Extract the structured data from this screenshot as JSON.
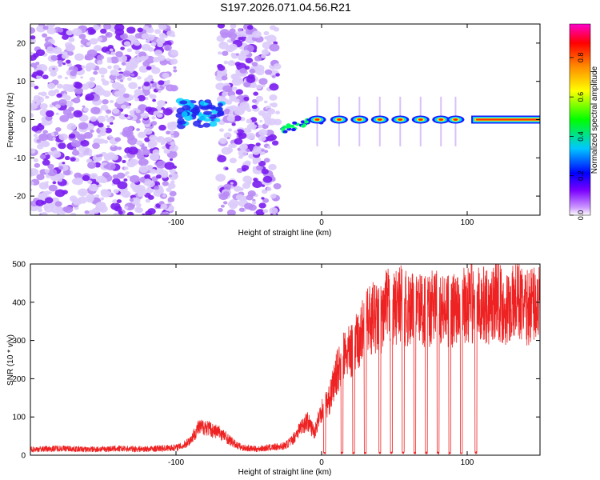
{
  "title": "S197.2026.071.04.56.R21",
  "chart_data": [
    {
      "type": "heatmap",
      "name": "spectrogram",
      "xlabel": "Height of straight line (km)",
      "ylabel": "Frequency (Hz)",
      "xlim": [
        -200,
        150
      ],
      "ylim": [
        -25,
        25
      ],
      "xticks": [
        -100,
        0,
        100
      ],
      "xtick_labels": [
        "-100",
        "0",
        "100"
      ],
      "yticks": [
        -20,
        -10,
        0,
        10,
        20
      ],
      "ytick_labels": [
        "-20",
        "-10",
        "0",
        "10",
        "20"
      ],
      "noise_regions_x": [
        [
          -200,
          -100
        ],
        [
          -70,
          -30
        ]
      ],
      "signal_start_x": -30,
      "continuous_tone_start_x": 105,
      "tone_frequency": 0,
      "pulse_centers_x": [
        -3,
        12,
        26,
        40,
        54,
        68,
        82,
        92
      ],
      "colorbar": {
        "label": "Normalized spectral amplitude",
        "range": [
          0,
          0.97
        ],
        "ticks": [
          0,
          0.2,
          0.4,
          0.6,
          0.8
        ],
        "tick_labels": [
          "0.0",
          "0.2",
          "0.4",
          "0.6",
          "0.8"
        ],
        "colors": [
          "#ffffff",
          "#cc99ff",
          "#7a00ff",
          "#0000ff",
          "#00c8ff",
          "#00ff00",
          "#ffff00",
          "#ff8800",
          "#ff0000",
          "#ff00cc"
        ]
      }
    },
    {
      "type": "line",
      "name": "snr",
      "xlabel": "Height of straight line (km)",
      "ylabel": "SNR (10 * v/v)",
      "xlim": [
        -200,
        150
      ],
      "ylim": [
        0,
        500
      ],
      "xticks": [
        -100,
        0,
        100
      ],
      "xtick_labels": [
        "-100",
        "0",
        "100"
      ],
      "yticks": [
        0,
        100,
        200,
        300,
        400,
        500
      ],
      "ytick_labels": [
        "0",
        "100",
        "200",
        "300",
        "400",
        "500"
      ],
      "line_color": "#ee2222",
      "x": [
        -200,
        -180,
        -160,
        -140,
        -120,
        -100,
        -95,
        -90,
        -85,
        -80,
        -75,
        -70,
        -65,
        -60,
        -55,
        -50,
        -45,
        -40,
        -35,
        -30,
        -25,
        -20,
        -15,
        -10,
        -5,
        0,
        5,
        10,
        15,
        20,
        25,
        30,
        35,
        40,
        45,
        50,
        55,
        60,
        65,
        70,
        75,
        80,
        85,
        90,
        95,
        100,
        105,
        110,
        115,
        120,
        125,
        130,
        135,
        140,
        145,
        150
      ],
      "y": [
        15,
        18,
        15,
        17,
        16,
        20,
        25,
        40,
        70,
        75,
        65,
        60,
        45,
        30,
        20,
        18,
        16,
        18,
        20,
        22,
        25,
        40,
        70,
        90,
        60,
        120,
        140,
        210,
        260,
        270,
        300,
        340,
        360,
        350,
        390,
        380,
        400,
        370,
        390,
        380,
        380,
        400,
        370,
        380,
        410,
        390,
        390,
        400,
        380,
        420,
        380,
        390,
        410,
        380,
        400,
        390
      ],
      "dropouts_x": [
        2,
        14,
        22,
        30,
        40,
        48,
        56,
        64,
        72,
        80,
        88,
        96,
        106
      ],
      "spike": {
        "x": 103,
        "y": 500
      }
    }
  ]
}
